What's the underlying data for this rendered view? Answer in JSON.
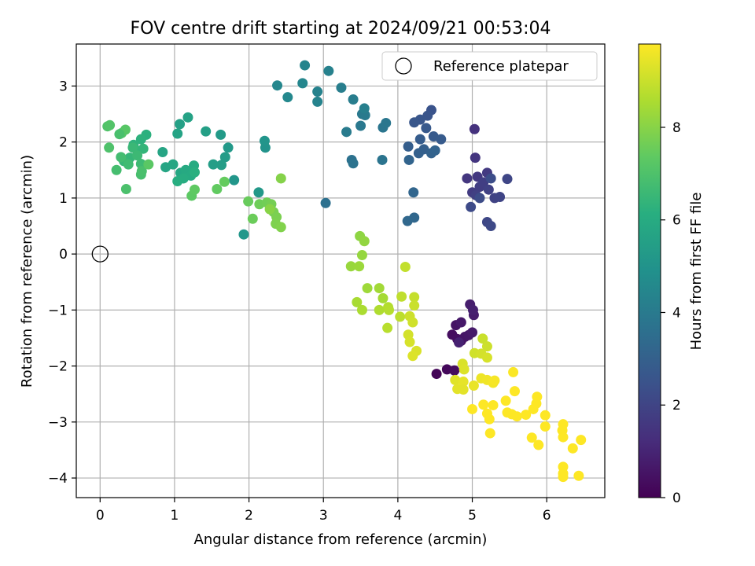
{
  "chart_data": {
    "type": "scatter",
    "title": "FOV centre drift starting at 2024/09/21 00:53:04",
    "xlabel": "Angular distance from reference (arcmin)",
    "ylabel": "Rotation from reference (arcmin)",
    "xlim": [
      -0.32,
      6.78
    ],
    "ylim": [
      -4.35,
      3.75
    ],
    "xticks": [
      "0",
      "1",
      "2",
      "3",
      "4",
      "5",
      "6"
    ],
    "yticks": [
      "−4",
      "−3",
      "−2",
      "−1",
      "0",
      "1",
      "2",
      "3"
    ],
    "grid": true,
    "legend": {
      "position": "top-right",
      "entries": [
        "Reference platepar"
      ]
    },
    "reference_point": {
      "x": 0,
      "y": 0
    },
    "colorbar": {
      "label": "Hours from first FF file",
      "colormap": "viridis",
      "range": [
        0,
        9.8
      ],
      "ticks": [
        "0",
        "2",
        "4",
        "6",
        "8"
      ]
    },
    "points": [
      {
        "x": 4.52,
        "y": -2.14,
        "h": 0.1
      },
      {
        "x": 4.66,
        "y": -2.06,
        "h": 0.2
      },
      {
        "x": 4.76,
        "y": -2.08,
        "h": 0.3
      },
      {
        "x": 4.73,
        "y": -1.44,
        "h": 0.35
      },
      {
        "x": 4.8,
        "y": -1.52,
        "h": 0.4
      },
      {
        "x": 4.85,
        "y": -1.55,
        "h": 0.45
      },
      {
        "x": 4.78,
        "y": -1.27,
        "h": 0.5
      },
      {
        "x": 4.9,
        "y": -1.48,
        "h": 0.55
      },
      {
        "x": 4.95,
        "y": -1.45,
        "h": 0.6
      },
      {
        "x": 4.85,
        "y": -1.22,
        "h": 0.65
      },
      {
        "x": 5.0,
        "y": -1.4,
        "h": 0.7
      },
      {
        "x": 5.02,
        "y": -1.09,
        "h": 0.75
      },
      {
        "x": 4.97,
        "y": -0.9,
        "h": 0.8
      },
      {
        "x": 5.01,
        "y": -1.0,
        "h": 0.85
      },
      {
        "x": 4.82,
        "y": -1.58,
        "h": 0.9
      },
      {
        "x": 5.03,
        "y": 2.23,
        "h": 1.4
      },
      {
        "x": 5.04,
        "y": 1.72,
        "h": 1.5
      },
      {
        "x": 4.93,
        "y": 1.35,
        "h": 1.55
      },
      {
        "x": 5.07,
        "y": 1.38,
        "h": 1.6
      },
      {
        "x": 5.2,
        "y": 1.45,
        "h": 1.65
      },
      {
        "x": 5.0,
        "y": 1.1,
        "h": 1.7
      },
      {
        "x": 5.1,
        "y": 1.2,
        "h": 1.75
      },
      {
        "x": 5.15,
        "y": 1.28,
        "h": 1.8
      },
      {
        "x": 5.05,
        "y": 1.05,
        "h": 1.85
      },
      {
        "x": 5.22,
        "y": 1.15,
        "h": 1.9
      },
      {
        "x": 5.3,
        "y": 1.0,
        "h": 1.95
      },
      {
        "x": 5.37,
        "y": 1.02,
        "h": 2.0
      },
      {
        "x": 5.47,
        "y": 1.34,
        "h": 2.05
      },
      {
        "x": 5.2,
        "y": 0.57,
        "h": 2.1
      },
      {
        "x": 5.25,
        "y": 0.5,
        "h": 2.15
      },
      {
        "x": 4.98,
        "y": 0.84,
        "h": 2.2
      },
      {
        "x": 5.1,
        "y": 1.0,
        "h": 2.25
      },
      {
        "x": 5.25,
        "y": 1.35,
        "h": 2.3
      },
      {
        "x": 4.45,
        "y": 2.57,
        "h": 2.5
      },
      {
        "x": 4.4,
        "y": 2.47,
        "h": 2.55
      },
      {
        "x": 4.3,
        "y": 2.4,
        "h": 2.6
      },
      {
        "x": 4.22,
        "y": 2.35,
        "h": 2.65
      },
      {
        "x": 4.38,
        "y": 2.25,
        "h": 2.7
      },
      {
        "x": 4.48,
        "y": 2.1,
        "h": 2.75
      },
      {
        "x": 4.58,
        "y": 2.05,
        "h": 2.8
      },
      {
        "x": 4.3,
        "y": 2.05,
        "h": 2.85
      },
      {
        "x": 4.14,
        "y": 1.92,
        "h": 2.9
      },
      {
        "x": 4.35,
        "y": 1.87,
        "h": 2.95
      },
      {
        "x": 4.28,
        "y": 1.8,
        "h": 3.0
      },
      {
        "x": 4.45,
        "y": 1.8,
        "h": 3.05
      },
      {
        "x": 4.5,
        "y": 1.85,
        "h": 3.1
      },
      {
        "x": 4.15,
        "y": 1.68,
        "h": 3.15
      },
      {
        "x": 4.21,
        "y": 1.1,
        "h": 3.2
      },
      {
        "x": 4.22,
        "y": 0.65,
        "h": 3.25
      },
      {
        "x": 4.13,
        "y": 0.59,
        "h": 3.3
      },
      {
        "x": 3.03,
        "y": 0.91,
        "h": 3.6
      },
      {
        "x": 3.38,
        "y": 1.68,
        "h": 3.65
      },
      {
        "x": 3.4,
        "y": 1.62,
        "h": 3.7
      },
      {
        "x": 3.79,
        "y": 1.68,
        "h": 3.75
      },
      {
        "x": 3.8,
        "y": 2.26,
        "h": 3.8
      },
      {
        "x": 3.84,
        "y": 2.34,
        "h": 3.85
      },
      {
        "x": 3.5,
        "y": 2.29,
        "h": 3.9
      },
      {
        "x": 3.52,
        "y": 2.5,
        "h": 3.95
      },
      {
        "x": 3.56,
        "y": 2.48,
        "h": 4.0
      },
      {
        "x": 3.31,
        "y": 2.18,
        "h": 4.05
      },
      {
        "x": 3.4,
        "y": 2.76,
        "h": 4.1
      },
      {
        "x": 3.24,
        "y": 2.97,
        "h": 4.15
      },
      {
        "x": 3.55,
        "y": 2.6,
        "h": 4.2
      },
      {
        "x": 3.07,
        "y": 3.27,
        "h": 4.25
      },
      {
        "x": 2.92,
        "y": 2.9,
        "h": 4.3
      },
      {
        "x": 2.92,
        "y": 2.72,
        "h": 4.35
      },
      {
        "x": 2.75,
        "y": 3.37,
        "h": 4.4
      },
      {
        "x": 2.72,
        "y": 3.05,
        "h": 4.45
      },
      {
        "x": 2.38,
        "y": 3.01,
        "h": 4.5
      },
      {
        "x": 2.52,
        "y": 2.8,
        "h": 4.55
      },
      {
        "x": 2.22,
        "y": 1.9,
        "h": 5.0
      },
      {
        "x": 2.21,
        "y": 2.02,
        "h": 5.05
      },
      {
        "x": 1.8,
        "y": 1.32,
        "h": 5.1
      },
      {
        "x": 1.93,
        "y": 0.35,
        "h": 5.15
      },
      {
        "x": 2.13,
        "y": 1.1,
        "h": 5.2
      },
      {
        "x": 1.72,
        "y": 1.9,
        "h": 5.25
      },
      {
        "x": 1.62,
        "y": 2.13,
        "h": 5.3
      },
      {
        "x": 1.68,
        "y": 1.73,
        "h": 5.35
      },
      {
        "x": 1.63,
        "y": 1.59,
        "h": 5.4
      },
      {
        "x": 1.52,
        "y": 1.6,
        "h": 5.45
      },
      {
        "x": 1.42,
        "y": 2.19,
        "h": 5.5
      },
      {
        "x": 1.07,
        "y": 2.32,
        "h": 5.55
      },
      {
        "x": 1.18,
        "y": 2.44,
        "h": 5.6
      },
      {
        "x": 1.04,
        "y": 2.15,
        "h": 5.65
      },
      {
        "x": 0.84,
        "y": 1.82,
        "h": 5.7
      },
      {
        "x": 0.88,
        "y": 1.55,
        "h": 5.75
      },
      {
        "x": 0.98,
        "y": 1.6,
        "h": 5.8
      },
      {
        "x": 1.08,
        "y": 1.45,
        "h": 5.85
      },
      {
        "x": 1.15,
        "y": 1.5,
        "h": 5.9
      },
      {
        "x": 1.22,
        "y": 1.4,
        "h": 5.95
      },
      {
        "x": 1.26,
        "y": 1.58,
        "h": 6.0
      },
      {
        "x": 1.12,
        "y": 1.35,
        "h": 6.05
      },
      {
        "x": 1.04,
        "y": 1.3,
        "h": 6.1
      },
      {
        "x": 1.27,
        "y": 1.46,
        "h": 6.15
      },
      {
        "x": 0.62,
        "y": 2.13,
        "h": 6.2
      },
      {
        "x": 0.55,
        "y": 2.05,
        "h": 6.25
      },
      {
        "x": 0.45,
        "y": 1.95,
        "h": 6.3
      },
      {
        "x": 0.5,
        "y": 1.84,
        "h": 6.35
      },
      {
        "x": 0.58,
        "y": 1.88,
        "h": 6.4
      },
      {
        "x": 0.4,
        "y": 1.72,
        "h": 6.45
      },
      {
        "x": 0.32,
        "y": 1.66,
        "h": 6.5
      },
      {
        "x": 0.44,
        "y": 1.9,
        "h": 6.55
      },
      {
        "x": 0.5,
        "y": 1.76,
        "h": 6.6
      },
      {
        "x": 0.55,
        "y": 1.61,
        "h": 6.65
      },
      {
        "x": 0.38,
        "y": 1.6,
        "h": 6.7
      },
      {
        "x": 0.28,
        "y": 1.73,
        "h": 6.75
      },
      {
        "x": 0.22,
        "y": 1.5,
        "h": 6.8
      },
      {
        "x": 0.55,
        "y": 1.42,
        "h": 6.85
      },
      {
        "x": 0.56,
        "y": 1.48,
        "h": 6.9
      },
      {
        "x": 0.35,
        "y": 1.16,
        "h": 6.95
      },
      {
        "x": 0.12,
        "y": 1.9,
        "h": 7.0
      },
      {
        "x": 0.1,
        "y": 2.28,
        "h": 7.05
      },
      {
        "x": 0.13,
        "y": 2.3,
        "h": 7.1
      },
      {
        "x": 0.29,
        "y": 2.16,
        "h": 7.15
      },
      {
        "x": 0.34,
        "y": 2.22,
        "h": 7.2
      },
      {
        "x": 0.65,
        "y": 1.6,
        "h": 7.25
      },
      {
        "x": 0.26,
        "y": 2.14,
        "h": 6.9
      },
      {
        "x": 1.23,
        "y": 1.04,
        "h": 7.3
      },
      {
        "x": 1.27,
        "y": 1.15,
        "h": 7.35
      },
      {
        "x": 1.57,
        "y": 1.16,
        "h": 7.4
      },
      {
        "x": 1.67,
        "y": 1.29,
        "h": 7.45
      },
      {
        "x": 1.99,
        "y": 0.94,
        "h": 7.5
      },
      {
        "x": 2.05,
        "y": 0.63,
        "h": 7.55
      },
      {
        "x": 2.14,
        "y": 0.89,
        "h": 7.6
      },
      {
        "x": 2.24,
        "y": 0.92,
        "h": 7.65
      },
      {
        "x": 2.3,
        "y": 0.89,
        "h": 7.7
      },
      {
        "x": 2.33,
        "y": 0.75,
        "h": 7.75
      },
      {
        "x": 2.37,
        "y": 0.66,
        "h": 7.8
      },
      {
        "x": 2.36,
        "y": 0.54,
        "h": 7.85
      },
      {
        "x": 2.43,
        "y": 0.48,
        "h": 7.9
      },
      {
        "x": 2.43,
        "y": 1.35,
        "h": 7.95
      },
      {
        "x": 2.28,
        "y": 0.8,
        "h": 8.0
      },
      {
        "x": 3.49,
        "y": 0.32,
        "h": 8.1
      },
      {
        "x": 3.55,
        "y": 0.23,
        "h": 8.15
      },
      {
        "x": 3.52,
        "y": -0.02,
        "h": 8.2
      },
      {
        "x": 3.37,
        "y": -0.22,
        "h": 8.25
      },
      {
        "x": 3.48,
        "y": -0.22,
        "h": 8.3
      },
      {
        "x": 3.59,
        "y": -0.61,
        "h": 8.35
      },
      {
        "x": 3.75,
        "y": -0.61,
        "h": 8.4
      },
      {
        "x": 3.8,
        "y": -0.79,
        "h": 8.45
      },
      {
        "x": 3.45,
        "y": -0.86,
        "h": 8.5
      },
      {
        "x": 3.52,
        "y": -1.0,
        "h": 8.55
      },
      {
        "x": 3.75,
        "y": -1.0,
        "h": 8.6
      },
      {
        "x": 3.87,
        "y": -0.95,
        "h": 8.65
      },
      {
        "x": 3.88,
        "y": -1.0,
        "h": 8.7
      },
      {
        "x": 3.86,
        "y": -1.32,
        "h": 8.75
      },
      {
        "x": 4.03,
        "y": -1.12,
        "h": 8.8
      },
      {
        "x": 4.05,
        "y": -0.76,
        "h": 8.85
      },
      {
        "x": 4.1,
        "y": -0.23,
        "h": 8.9
      },
      {
        "x": 4.22,
        "y": -0.77,
        "h": 8.95
      },
      {
        "x": 4.22,
        "y": -0.92,
        "h": 9.0
      },
      {
        "x": 4.16,
        "y": -1.11,
        "h": 9.05
      },
      {
        "x": 4.2,
        "y": -1.22,
        "h": 9.1
      },
      {
        "x": 4.14,
        "y": -1.44,
        "h": 9.15
      },
      {
        "x": 4.16,
        "y": -1.57,
        "h": 9.2
      },
      {
        "x": 4.25,
        "y": -1.73,
        "h": 9.25
      },
      {
        "x": 4.2,
        "y": -1.82,
        "h": 9.3
      },
      {
        "x": 5.14,
        "y": -1.51,
        "h": 9.0
      },
      {
        "x": 5.2,
        "y": -1.65,
        "h": 9.05
      },
      {
        "x": 5.03,
        "y": -1.77,
        "h": 9.1
      },
      {
        "x": 5.12,
        "y": -1.78,
        "h": 9.15
      },
      {
        "x": 5.2,
        "y": -1.85,
        "h": 9.2
      },
      {
        "x": 4.87,
        "y": -1.96,
        "h": 9.25
      },
      {
        "x": 4.89,
        "y": -2.06,
        "h": 9.3
      },
      {
        "x": 4.77,
        "y": -2.25,
        "h": 9.35
      },
      {
        "x": 4.8,
        "y": -2.41,
        "h": 9.4
      },
      {
        "x": 4.88,
        "y": -2.28,
        "h": 9.45
      },
      {
        "x": 5.02,
        "y": -2.35,
        "h": 9.5
      },
      {
        "x": 5.12,
        "y": -2.22,
        "h": 9.55
      },
      {
        "x": 5.2,
        "y": -2.25,
        "h": 9.6
      },
      {
        "x": 5.28,
        "y": -2.3,
        "h": 9.65
      },
      {
        "x": 5.3,
        "y": -2.26,
        "h": 9.7
      },
      {
        "x": 5.55,
        "y": -2.11,
        "h": 9.75
      },
      {
        "x": 5.57,
        "y": -2.45,
        "h": 9.8
      },
      {
        "x": 5.45,
        "y": -2.62,
        "h": 9.8
      },
      {
        "x": 5.15,
        "y": -2.69,
        "h": 9.8
      },
      {
        "x": 5.28,
        "y": -2.7,
        "h": 9.8
      },
      {
        "x": 5.0,
        "y": -2.77,
        "h": 9.8
      },
      {
        "x": 5.2,
        "y": -2.85,
        "h": 9.8
      },
      {
        "x": 5.23,
        "y": -2.95,
        "h": 9.8
      },
      {
        "x": 5.24,
        "y": -3.2,
        "h": 9.8
      },
      {
        "x": 5.47,
        "y": -2.83,
        "h": 9.8
      },
      {
        "x": 5.53,
        "y": -2.86,
        "h": 9.8
      },
      {
        "x": 5.6,
        "y": -2.9,
        "h": 9.8
      },
      {
        "x": 5.72,
        "y": -2.87,
        "h": 9.8
      },
      {
        "x": 5.82,
        "y": -2.77,
        "h": 9.8
      },
      {
        "x": 5.86,
        "y": -2.67,
        "h": 9.8
      },
      {
        "x": 5.87,
        "y": -2.55,
        "h": 9.8
      },
      {
        "x": 5.98,
        "y": -2.88,
        "h": 9.8
      },
      {
        "x": 5.98,
        "y": -3.08,
        "h": 9.8
      },
      {
        "x": 5.8,
        "y": -3.28,
        "h": 9.8
      },
      {
        "x": 5.89,
        "y": -3.41,
        "h": 9.8
      },
      {
        "x": 6.22,
        "y": -3.04,
        "h": 9.8
      },
      {
        "x": 6.21,
        "y": -3.15,
        "h": 9.8
      },
      {
        "x": 6.22,
        "y": -3.27,
        "h": 9.8
      },
      {
        "x": 6.46,
        "y": -3.32,
        "h": 9.8
      },
      {
        "x": 6.35,
        "y": -3.47,
        "h": 9.8
      },
      {
        "x": 6.22,
        "y": -3.8,
        "h": 9.8
      },
      {
        "x": 6.22,
        "y": -3.92,
        "h": 9.8
      },
      {
        "x": 6.22,
        "y": -3.98,
        "h": 9.8
      },
      {
        "x": 6.43,
        "y": -3.96,
        "h": 9.8
      },
      {
        "x": 4.88,
        "y": -2.42,
        "h": 9.4
      }
    ]
  }
}
